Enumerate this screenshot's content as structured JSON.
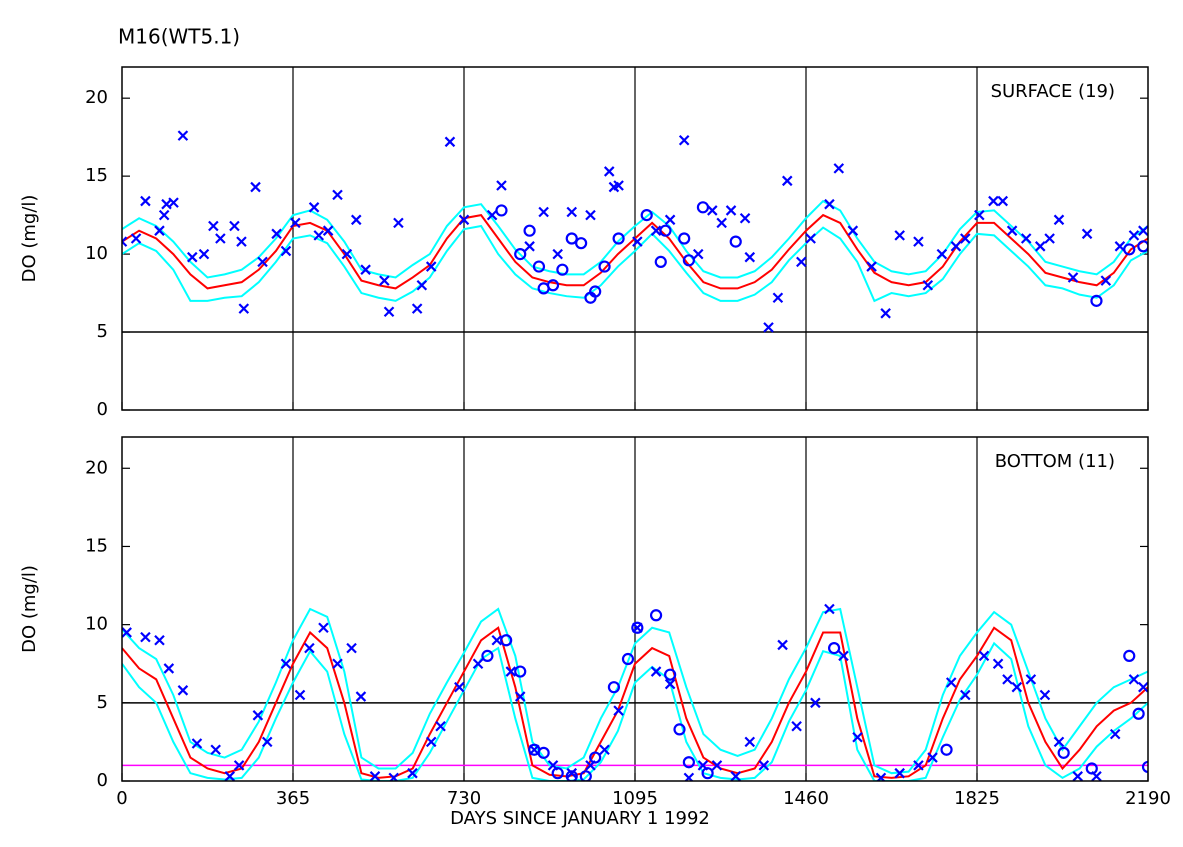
{
  "chart_data": [
    {
      "type": "line",
      "title": "M16(WT5.1)",
      "ylabel": "DO (mg/l)",
      "panel_label": "SURFACE (19)",
      "xlim": [
        0,
        2190
      ],
      "xticks": [
        0,
        365,
        730,
        1095,
        1460,
        1825,
        2190
      ],
      "ylim": [
        0,
        22
      ],
      "yticks": [
        0,
        5,
        10,
        15,
        20
      ],
      "grid": true,
      "hlines": [
        {
          "value": 5,
          "color": "#000000"
        }
      ],
      "x": [
        0,
        36.5,
        73,
        109.5,
        146,
        182.5,
        219,
        255.5,
        292,
        328.5,
        365,
        401.5,
        438,
        474.5,
        511,
        547.5,
        584,
        620.5,
        657,
        693.5,
        730,
        766.5,
        803,
        839.5,
        876,
        912.5,
        949,
        985.5,
        1022,
        1058.5,
        1095,
        1131.5,
        1168,
        1204.5,
        1241,
        1277.5,
        1314,
        1350.5,
        1387,
        1423.5,
        1460,
        1496.5,
        1533,
        1569.5,
        1606,
        1642.5,
        1679,
        1715.5,
        1752,
        1788.5,
        1825,
        1861.5,
        1898,
        1934.5,
        1971,
        2007.5,
        2044,
        2080.5,
        2117,
        2153.5,
        2190
      ],
      "series": [
        {
          "marker": "line",
          "color": "#00ffff",
          "values": [
            11.6,
            12.3,
            11.8,
            10.8,
            9.5,
            8.5,
            8.7,
            9,
            9.8,
            11,
            12.5,
            12.8,
            12.2,
            10.8,
            9,
            8.7,
            8.5,
            9.3,
            10,
            11.8,
            13,
            13.2,
            11.8,
            10.3,
            9.2,
            8.9,
            8.7,
            8.7,
            9.5,
            10.8,
            11.8,
            12.7,
            11.8,
            10.2,
            8.9,
            8.5,
            8.5,
            8.9,
            9.8,
            11,
            12.3,
            13.4,
            12.8,
            11,
            9.5,
            8.9,
            8.7,
            8.9,
            10,
            11.6,
            12.7,
            12.8,
            11.8,
            10.8,
            9.5,
            9.2,
            8.9,
            8.7,
            9.5,
            11,
            11.8
          ]
        },
        {
          "marker": "line",
          "color": "#00ffff",
          "values": [
            10,
            10.7,
            10.2,
            9,
            7,
            7,
            7.2,
            7.3,
            8.2,
            9.5,
            11,
            11.2,
            10.7,
            9.2,
            7.5,
            7.2,
            7,
            7.6,
            8.5,
            10.2,
            11.6,
            11.8,
            10,
            8.7,
            7.8,
            7.5,
            7.3,
            7.2,
            8,
            9.2,
            10.2,
            11.3,
            10.2,
            8.8,
            7.5,
            7,
            7,
            7.4,
            8.2,
            9.6,
            10.7,
            11.7,
            11,
            9.5,
            7,
            7.5,
            7.3,
            7.5,
            8.4,
            10,
            11.3,
            11.2,
            10.2,
            9.2,
            8,
            7.8,
            7.4,
            7.2,
            8,
            9.6,
            10.2
          ]
        },
        {
          "marker": "line",
          "color": "#ff0000",
          "values": [
            10.8,
            11.5,
            11,
            10,
            8.7,
            7.8,
            8,
            8.2,
            9,
            10.2,
            11.8,
            12,
            11.5,
            10,
            8.3,
            8,
            7.8,
            8.5,
            9.3,
            11,
            12.3,
            12.5,
            11,
            9.5,
            8.5,
            8.2,
            8,
            8,
            8.8,
            10,
            11,
            12,
            11,
            9.5,
            8.2,
            7.8,
            7.8,
            8.2,
            9,
            10.3,
            11.5,
            12.5,
            12,
            10.3,
            8.8,
            8.2,
            8,
            8.2,
            9.2,
            10.8,
            12,
            12,
            11,
            10,
            8.8,
            8.5,
            8.2,
            8,
            8.8,
            10.3,
            11
          ]
        },
        {
          "marker": "x",
          "color": "#0000ff",
          "x": [
            0,
            30,
            50,
            80,
            90,
            95,
            110,
            130,
            150,
            175,
            195,
            210,
            240,
            255,
            260,
            285,
            300,
            330,
            350,
            370,
            410,
            420,
            440,
            460,
            480,
            500,
            520,
            560,
            570,
            590,
            630,
            640,
            660,
            700,
            730,
            790,
            810,
            870,
            900,
            930,
            960,
            1000,
            1040,
            1050,
            1060,
            1100,
            1140,
            1170,
            1200,
            1230,
            1260,
            1280,
            1300,
            1330,
            1340,
            1380,
            1400,
            1420,
            1450,
            1470,
            1510,
            1530,
            1560,
            1600,
            1630,
            1660,
            1700,
            1720,
            1750,
            1780,
            1800,
            1830,
            1860,
            1880,
            1900,
            1930,
            1960,
            1980,
            2000,
            2030,
            2060,
            2100,
            2130,
            2160,
            2180
          ],
          "values": [
            10.8,
            11,
            13.4,
            11.5,
            12.5,
            13.2,
            13.3,
            17.6,
            9.8,
            10,
            11.8,
            11,
            11.8,
            10.8,
            6.5,
            14.3,
            9.5,
            11.3,
            10.2,
            12,
            13,
            11.2,
            11.5,
            13.8,
            10,
            12.2,
            9,
            8.3,
            6.3,
            12,
            6.5,
            8,
            9.2,
            17.2,
            12.2,
            12.5,
            14.4,
            10.5,
            12.7,
            10,
            12.7,
            12.5,
            15.3,
            14.3,
            14.4,
            10.8,
            11.5,
            12.2,
            17.3,
            10,
            12.8,
            12,
            12.8,
            12.3,
            9.8,
            5.3,
            7.2,
            14.7,
            9.5,
            11,
            13.2,
            15.5,
            11.5,
            9.2,
            6.2,
            11.2,
            10.8,
            8,
            10,
            10.5,
            11,
            12.5,
            13.4,
            13.4,
            11.5,
            11,
            10.5,
            11,
            12.2,
            8.5,
            11.3,
            8.3,
            10.5,
            11.2,
            11.5
          ]
        },
        {
          "marker": "o",
          "color": "#0000ff",
          "x": [
            810,
            850,
            870,
            890,
            900,
            920,
            940,
            960,
            980,
            1000,
            1010,
            1030,
            1060,
            1120,
            1150,
            1160,
            1200,
            1210,
            1240,
            1310,
            2080,
            2150,
            2180
          ],
          "values": [
            12.8,
            10,
            11.5,
            9.2,
            7.8,
            8,
            9,
            11,
            10.7,
            7.2,
            7.6,
            9.2,
            11,
            12.5,
            9.5,
            11.5,
            11,
            9.6,
            13,
            10.8,
            7,
            10.3,
            10.5
          ]
        }
      ]
    },
    {
      "type": "line",
      "ylabel": "DO (mg/l)",
      "panel_label": "BOTTOM (11)",
      "xlabel": "DAYS SINCE JANUARY 1 1992",
      "xlim": [
        0,
        2190
      ],
      "xticks": [
        0,
        365,
        730,
        1095,
        1460,
        1825,
        2190
      ],
      "ylim": [
        0,
        22
      ],
      "yticks": [
        0,
        5,
        10,
        15,
        20
      ],
      "grid": true,
      "hlines": [
        {
          "value": 5,
          "color": "#000000"
        },
        {
          "value": 1,
          "color": "#ff00ff"
        }
      ],
      "x": [
        0,
        36.5,
        73,
        109.5,
        146,
        182.5,
        219,
        255.5,
        292,
        328.5,
        365,
        401.5,
        438,
        474.5,
        511,
        547.5,
        584,
        620.5,
        657,
        693.5,
        730,
        766.5,
        803,
        839.5,
        876,
        912.5,
        949,
        985.5,
        1022,
        1058.5,
        1095,
        1131.5,
        1168,
        1204.5,
        1241,
        1277.5,
        1314,
        1350.5,
        1387,
        1423.5,
        1460,
        1496.5,
        1533,
        1569.5,
        1606,
        1642.5,
        1679,
        1715.5,
        1752,
        1788.5,
        1825,
        1861.5,
        1898,
        1934.5,
        1971,
        2007.5,
        2044,
        2080.5,
        2117,
        2153.5,
        2190
      ],
      "series": [
        {
          "marker": "line",
          "color": "#00ffff",
          "values": [
            9.7,
            8.5,
            7.8,
            5.5,
            2.5,
            1.8,
            1.5,
            2,
            3.8,
            6.3,
            9,
            11,
            10.5,
            7,
            1.5,
            0.8,
            0.8,
            1.8,
            4.3,
            6.3,
            8.2,
            10.2,
            11,
            8,
            2.5,
            1,
            0.8,
            1.5,
            4,
            6,
            8.8,
            9.8,
            9.5,
            6,
            3,
            2,
            1.6,
            2,
            4,
            6.5,
            8.5,
            10.8,
            11,
            6,
            1,
            0.5,
            0.6,
            2,
            5.5,
            8,
            9.5,
            10.8,
            10,
            7,
            4,
            2,
            3.5,
            5,
            6,
            6.5,
            7
          ]
        },
        {
          "marker": "line",
          "color": "#00ffff",
          "values": [
            7.5,
            6,
            5,
            2.5,
            0.5,
            0.2,
            0.1,
            0.2,
            1.5,
            4,
            6.3,
            8.3,
            7,
            3,
            0.1,
            0,
            0,
            0.2,
            1.8,
            3.8,
            5.8,
            7.8,
            8.5,
            4,
            0.2,
            0,
            0,
            0.1,
            1.2,
            3.2,
            6.3,
            7.3,
            6.5,
            2.5,
            0.5,
            0.2,
            0.1,
            0.2,
            1.2,
            3.8,
            5.8,
            8.3,
            8,
            2,
            0,
            0,
            0,
            0.2,
            2.8,
            5.2,
            6.8,
            8.8,
            7.8,
            3.5,
            1,
            0.2,
            0.8,
            2.2,
            3.2,
            4,
            5
          ]
        },
        {
          "marker": "line",
          "color": "#ff0000",
          "values": [
            8.5,
            7.2,
            6.5,
            4,
            1.5,
            0.8,
            0.5,
            0.8,
            2.5,
            5,
            7.5,
            9.5,
            8.5,
            5,
            0.5,
            0.2,
            0.3,
            0.8,
            3,
            5,
            7,
            9,
            9.8,
            6,
            1,
            0.4,
            0.3,
            0.5,
            2.5,
            4.5,
            7.5,
            8.5,
            8,
            4,
            1.5,
            0.8,
            0.5,
            0.8,
            2.5,
            5,
            7,
            9.5,
            9.5,
            4,
            0.3,
            0.2,
            0.3,
            1,
            4,
            6.5,
            8,
            9.8,
            9,
            5,
            2.5,
            0.8,
            2,
            3.5,
            4.5,
            5,
            6
          ]
        },
        {
          "marker": "x",
          "color": "#0000ff",
          "x": [
            10,
            50,
            80,
            100,
            130,
            160,
            200,
            230,
            250,
            290,
            310,
            350,
            380,
            400,
            430,
            460,
            490,
            510,
            540,
            580,
            620,
            660,
            680,
            720,
            760,
            800,
            830,
            850,
            880,
            920,
            960,
            1000,
            1030,
            1060,
            1100,
            1140,
            1170,
            1210,
            1240,
            1270,
            1310,
            1340,
            1370,
            1410,
            1440,
            1480,
            1510,
            1540,
            1570,
            1620,
            1660,
            1700,
            1730,
            1770,
            1800,
            1840,
            1870,
            1890,
            1910,
            1940,
            1970,
            2000,
            2040,
            2080,
            2120,
            2160,
            2180
          ],
          "values": [
            9.5,
            9.2,
            9,
            7.2,
            5.8,
            2.4,
            2,
            0.3,
            1,
            4.2,
            2.5,
            7.5,
            5.5,
            8.5,
            9.8,
            7.5,
            8.5,
            5.4,
            0.3,
            0.2,
            0.5,
            2.5,
            3.5,
            6,
            7.5,
            9,
            7,
            5.4,
            2,
            1,
            0.5,
            1,
            2,
            4.5,
            9.8,
            7,
            6.2,
            0.2,
            1,
            1,
            0.3,
            2.5,
            1,
            8.7,
            3.5,
            5,
            11,
            8,
            2.8,
            0.2,
            0.5,
            1,
            1.5,
            6.3,
            5.5,
            8,
            7.5,
            6.5,
            6,
            6.5,
            5.5,
            2.5,
            0.3,
            0.3,
            3,
            6.5,
            6
          ]
        },
        {
          "marker": "o",
          "color": "#0000ff",
          "x": [
            780,
            820,
            850,
            880,
            900,
            930,
            960,
            990,
            1010,
            1050,
            1080,
            1100,
            1140,
            1170,
            1190,
            1210,
            1250,
            1520,
            1760,
            2010,
            2070,
            2150,
            2170,
            2190
          ],
          "values": [
            8,
            9,
            7,
            2,
            1.8,
            0.5,
            0.3,
            0.3,
            1.5,
            6,
            7.8,
            9.8,
            10.6,
            6.8,
            3.3,
            1.2,
            0.5,
            8.5,
            2,
            1.8,
            0.8,
            8,
            4.3,
            0.9
          ]
        }
      ]
    }
  ]
}
